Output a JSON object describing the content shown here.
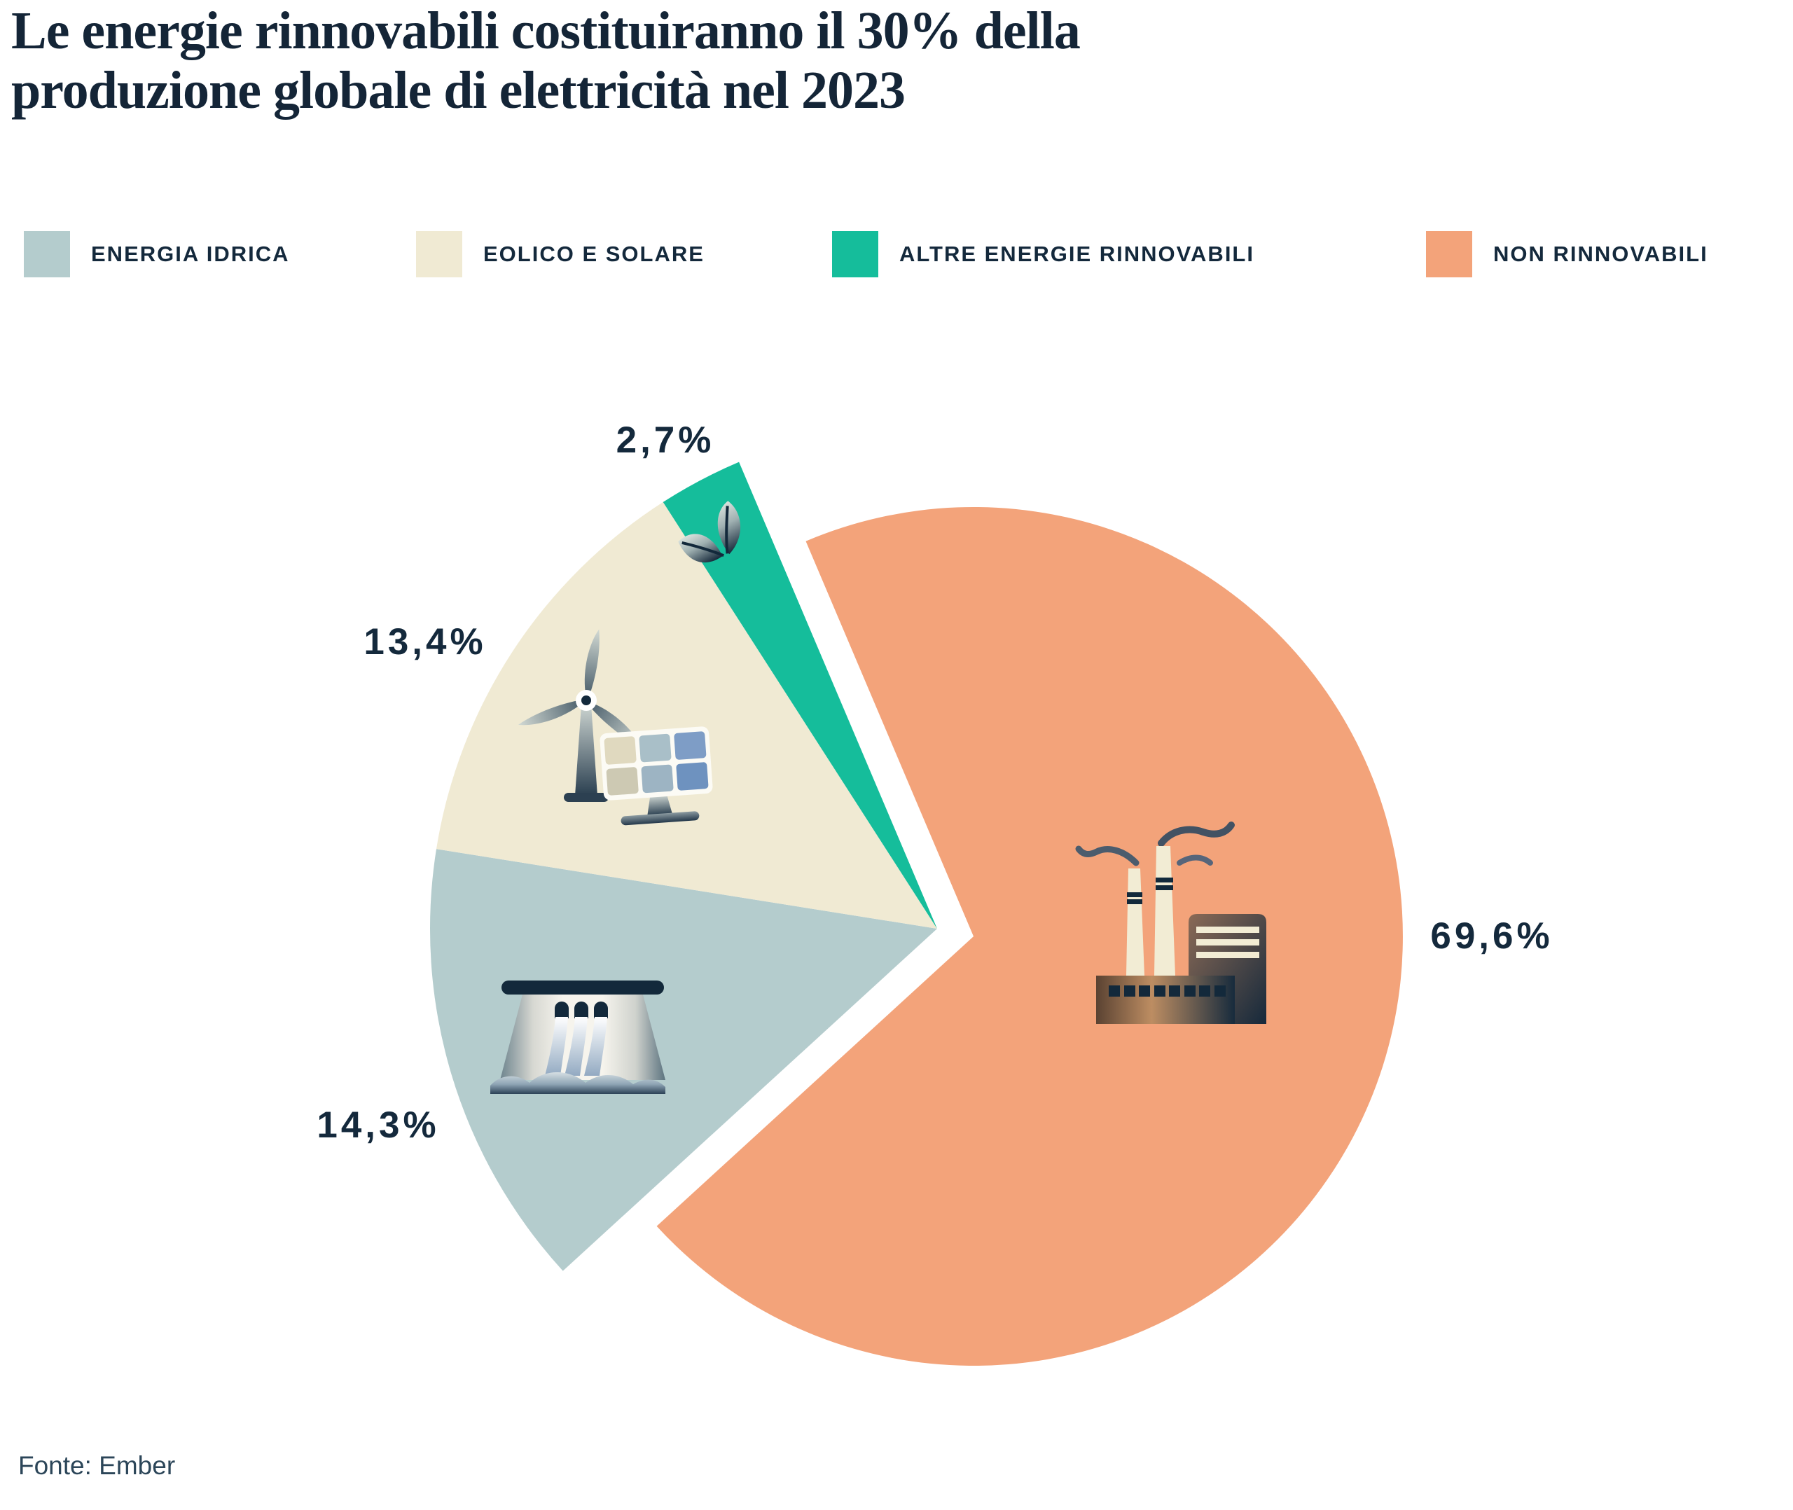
{
  "header": {
    "title_line1": "Le energie rinnovabili costituiranno il 30% della",
    "title_line2": "produzione globale di elettricità nel 2023"
  },
  "legend": {
    "position": "top",
    "items": [
      {
        "label": "ENERGIA IDRICA",
        "color": "#b4cccd"
      },
      {
        "label": "EOLICO E SOLARE",
        "color": "#f0ead3"
      },
      {
        "label": "ALTRE ENERGIE RINNOVABILI",
        "color": "#15bd9b"
      },
      {
        "label": "NON RINNOVABILI",
        "color": "#f3a37a"
      }
    ]
  },
  "chart_data": {
    "type": "pie",
    "title": "Le energie rinnovabili costituiranno il 30% della produzione globale di elettricità nel 2023",
    "unit": "%",
    "start_angle_deg": -23,
    "clockwise": true,
    "center": [
      1338,
      1326
    ],
    "legend_position": "top",
    "labels_outside": true,
    "slices": [
      {
        "label": "NON RINNOVABILI",
        "value": 69.6,
        "display": "69,6%",
        "color": "#f3a37a",
        "radius": 613,
        "explode": [
          52,
          11
        ],
        "icon": "factory-icon"
      },
      {
        "label": "ENERGIA IDRICA",
        "value": 14.3,
        "display": "14,3%",
        "color": "#b4cccd",
        "radius": 724,
        "explode": [
          0,
          0
        ],
        "icon": "dam-icon"
      },
      {
        "label": "EOLICO E SOLARE",
        "value": 13.4,
        "display": "13,4%",
        "color": "#f0ead3",
        "radius": 724,
        "explode": [
          0,
          0
        ],
        "icon": "wind-turbine-icon, solar-panel-icon"
      },
      {
        "label": "ALTRE ENERGIE RINNOVABILI",
        "value": 2.7,
        "display": "2,7%",
        "color": "#15bd9b",
        "radius": 724,
        "explode": [
          0,
          0
        ],
        "icon": "leaf-icon"
      }
    ]
  },
  "footer": {
    "source": "Fonte: Ember"
  }
}
